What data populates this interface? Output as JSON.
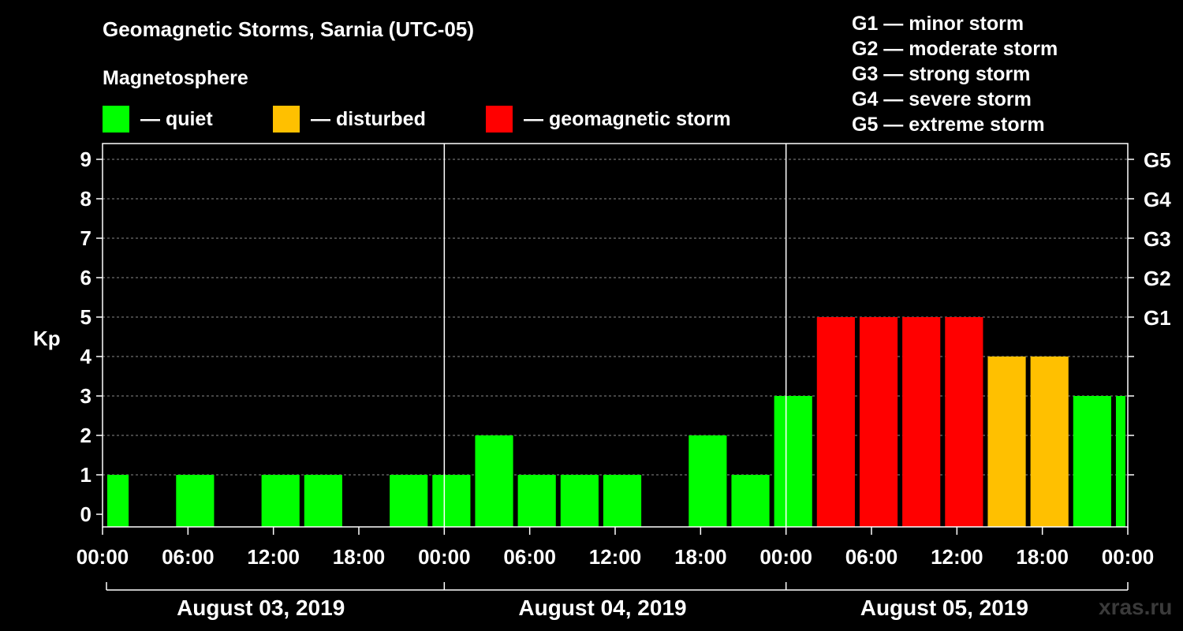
{
  "chart_data": {
    "type": "bar",
    "title": "Geomagnetic Storms, Sarnia (UTC-05)",
    "subtitle": "Magnetosphere",
    "ylabel": "Kp",
    "ylim": [
      0,
      9
    ],
    "y_ticks": [
      "0",
      "1",
      "2",
      "3",
      "4",
      "5",
      "6",
      "7",
      "8",
      "9"
    ],
    "g_scale_ticks": [
      {
        "kp": 5,
        "label": "G1"
      },
      {
        "kp": 6,
        "label": "G2"
      },
      {
        "kp": 7,
        "label": "G3"
      },
      {
        "kp": 8,
        "label": "G4"
      },
      {
        "kp": 9,
        "label": "G5"
      }
    ],
    "x_ticks": [
      "00:00",
      "06:00",
      "12:00",
      "18:00",
      "00:00",
      "06:00",
      "12:00",
      "18:00",
      "00:00",
      "06:00",
      "12:00",
      "18:00",
      "00:00"
    ],
    "days": [
      "August 03, 2019",
      "August 04, 2019",
      "August 05, 2019"
    ],
    "interval_hours": 3,
    "start_offset_hours": -1,
    "values": [
      1,
      0,
      1,
      0,
      1,
      1,
      0,
      1,
      1,
      2,
      1,
      1,
      1,
      0,
      2,
      1,
      3,
      5,
      5,
      5,
      5,
      4,
      4,
      3,
      3
    ],
    "status_legend": [
      {
        "label": "— quiet",
        "color": "#00ff00",
        "min": 0,
        "max": 3
      },
      {
        "label": "— disturbed",
        "color": "#ffc000",
        "min": 4,
        "max": 4
      },
      {
        "label": "— geomagnetic storm",
        "color": "#ff0000",
        "min": 5,
        "max": 9
      }
    ],
    "storm_scale": [
      "G1 — minor storm",
      "G2 — moderate storm",
      "G3 — strong storm",
      "G4 — severe storm",
      "G5 — extreme storm"
    ],
    "grid": "dashed horizontal"
  },
  "watermark": "xras.ru"
}
